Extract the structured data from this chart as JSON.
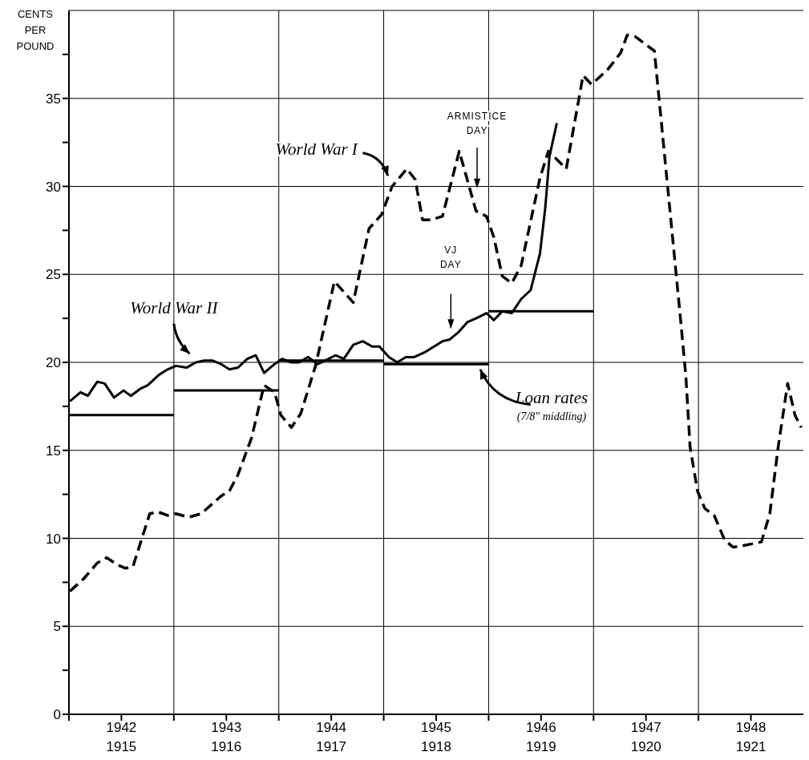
{
  "chart_data": {
    "type": "line",
    "ylabel": "CENTS PER POUND",
    "xlim": [
      1942,
      1949
    ],
    "xticks": [
      {
        "value": 1942,
        "label": null
      },
      {
        "value": 1942.5,
        "label": "1942"
      },
      {
        "value": 1943,
        "label": null
      },
      {
        "value": 1943.5,
        "label": "1943"
      },
      {
        "value": 1944,
        "label": null
      },
      {
        "value": 1944.5,
        "label": "1944"
      },
      {
        "value": 1945,
        "label": null
      },
      {
        "value": 1945.5,
        "label": "1945"
      },
      {
        "value": 1946,
        "label": null
      },
      {
        "value": 1946.5,
        "label": "1946"
      },
      {
        "value": 1947,
        "label": null
      },
      {
        "value": 1947.5,
        "label": "1947"
      },
      {
        "value": 1948,
        "label": null
      },
      {
        "value": 1948.5,
        "label": "1948"
      }
    ],
    "x2lim": [
      1915,
      1922
    ],
    "x2ticks": [
      {
        "value": 1915.5,
        "label": "1915"
      },
      {
        "value": 1916.5,
        "label": "1916"
      },
      {
        "value": 1917.5,
        "label": "1917"
      },
      {
        "value": 1918.5,
        "label": "1918"
      },
      {
        "value": 1919.5,
        "label": "1919"
      },
      {
        "value": 1920.5,
        "label": "1920"
      },
      {
        "value": 1921.5,
        "label": "1921"
      }
    ],
    "ylim": [
      0,
      40
    ],
    "yticks": [
      0,
      {
        "value": 2.5,
        "label": null
      },
      5,
      {
        "value": 7.5,
        "label": null
      },
      10,
      {
        "value": 12.5,
        "label": null
      },
      15,
      {
        "value": 17.5,
        "label": null
      },
      20,
      {
        "value": 22.5,
        "label": null
      },
      25,
      {
        "value": 27.5,
        "label": null
      },
      30,
      {
        "value": 32.5,
        "label": null
      },
      35,
      {
        "value": 37.5,
        "label": null
      }
    ],
    "grid": true,
    "series": [
      {
        "name": "World War I",
        "color": "#000000",
        "line_style": "dashed",
        "axis": "x2",
        "x": [
          1915.01,
          1915.14,
          1915.27,
          1915.36,
          1915.46,
          1915.54,
          1915.61,
          1915.77,
          1915.85,
          1915.94,
          1916.02,
          1916.14,
          1916.26,
          1916.45,
          1916.53,
          1916.61,
          1916.74,
          1916.86,
          1916.96,
          1917.02,
          1917.12,
          1917.21,
          1917.35,
          1917.53,
          1917.71,
          1917.86,
          1917.98,
          1918.08,
          1918.22,
          1918.3,
          1918.37,
          1918.45,
          1918.56,
          1918.72,
          1918.88,
          1918.98,
          1919.05,
          1919.13,
          1919.22,
          1919.31,
          1919.49,
          1919.57,
          1919.74,
          1919.9,
          1919.98,
          1920.13,
          1920.26,
          1920.32,
          1920.4,
          1920.58,
          1920.83,
          1920.88,
          1920.92,
          1920.99,
          1921.06,
          1921.15,
          1921.25,
          1921.33,
          1921.44,
          1921.6,
          1921.68,
          1921.76,
          1921.85,
          1921.92,
          1921.98
        ],
        "values": [
          7.0,
          7.7,
          8.6,
          8.9,
          8.5,
          8.3,
          8.4,
          11.4,
          11.5,
          11.3,
          11.4,
          11.2,
          11.4,
          12.4,
          12.7,
          13.6,
          15.7,
          18.7,
          18.3,
          17.0,
          16.3,
          17.1,
          19.8,
          24.6,
          23.4,
          27.6,
          28.4,
          30.0,
          31.0,
          30.4,
          28.1,
          28.1,
          28.3,
          32.0,
          28.6,
          28.3,
          27.1,
          24.9,
          24.5,
          25.5,
          30.5,
          32.0,
          31.0,
          36.3,
          35.8,
          36.6,
          37.6,
          38.6,
          38.5,
          37.7,
          22.4,
          19.2,
          15.2,
          12.7,
          11.7,
          11.3,
          9.9,
          9.5,
          9.6,
          9.8,
          11.4,
          15.2,
          18.8,
          17.0,
          16.3
        ]
      },
      {
        "name": "World War II",
        "color": "#000000",
        "line_style": "solid",
        "x": [
          1942.01,
          1942.11,
          1942.18,
          1942.27,
          1942.34,
          1942.43,
          1942.52,
          1942.59,
          1942.68,
          1942.75,
          1942.86,
          1942.94,
          1943.02,
          1943.12,
          1943.21,
          1943.29,
          1943.37,
          1943.45,
          1943.53,
          1943.61,
          1943.7,
          1943.78,
          1943.86,
          1943.96,
          1944.03,
          1944.12,
          1944.19,
          1944.28,
          1944.37,
          1944.44,
          1944.54,
          1944.62,
          1944.71,
          1944.8,
          1944.89,
          1944.96,
          1945.05,
          1945.13,
          1945.21,
          1945.29,
          1945.4,
          1945.48,
          1945.56,
          1945.63,
          1945.71,
          1945.8,
          1945.88,
          1945.98,
          1946.05,
          1946.13,
          1946.22,
          1946.31,
          1946.4,
          1946.49,
          1946.54,
          1946.58,
          1946.65
        ],
        "values": [
          17.8,
          18.3,
          18.1,
          18.9,
          18.8,
          18.0,
          18.4,
          18.1,
          18.5,
          18.7,
          19.3,
          19.6,
          19.8,
          19.7,
          20.0,
          20.1,
          20.1,
          19.9,
          19.6,
          19.7,
          20.2,
          20.4,
          19.4,
          19.9,
          20.2,
          20.0,
          20.0,
          20.3,
          19.9,
          20.1,
          20.4,
          20.2,
          21.0,
          21.2,
          20.9,
          20.9,
          20.3,
          20.0,
          20.3,
          20.3,
          20.6,
          20.9,
          21.2,
          21.3,
          21.7,
          22.3,
          22.5,
          22.8,
          22.4,
          22.9,
          22.8,
          23.6,
          24.1,
          26.2,
          28.8,
          31.7,
          33.6
        ]
      },
      {
        "name": "Loan rates",
        "color": "#000000",
        "line_style": "solid",
        "x": [
          1942,
          1943,
          null,
          1943,
          1944,
          null,
          1944,
          1945,
          null,
          1945,
          1946,
          null,
          1946,
          1947
        ],
        "values": [
          17.0,
          17.0,
          null,
          18.4,
          18.4,
          null,
          20.1,
          20.1,
          null,
          19.9,
          19.9,
          null,
          22.9,
          22.9
        ]
      }
    ],
    "annotations": [
      "(7/8\" middling)",
      "ARMISTICE DAY",
      "VJ DAY"
    ]
  }
}
